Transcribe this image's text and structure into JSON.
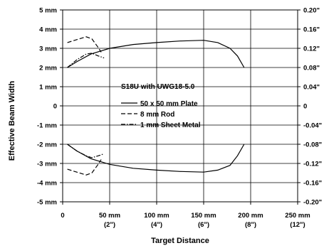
{
  "chart_data": {
    "type": "line",
    "title": "",
    "xlabel": "Target Distance",
    "ylabel": "Effective Beam Width",
    "xlim": [
      0,
      250
    ],
    "ylim": [
      -5,
      5
    ],
    "x_ticks": [
      {
        "value": 0,
        "label": "0",
        "sub": ""
      },
      {
        "value": 50,
        "label": "50 mm",
        "sub": "(2\")"
      },
      {
        "value": 100,
        "label": "100 mm",
        "sub": "(4\")"
      },
      {
        "value": 150,
        "label": "150 mm",
        "sub": "(6\")"
      },
      {
        "value": 200,
        "label": "200 mm",
        "sub": "(8\")"
      },
      {
        "value": 250,
        "label": "250 mm",
        "sub": "(12\")"
      }
    ],
    "y_ticks_left": [
      {
        "value": 5,
        "label": "5 mm"
      },
      {
        "value": 4,
        "label": "4 mm"
      },
      {
        "value": 3,
        "label": "3 mm"
      },
      {
        "value": 2,
        "label": "2 mm"
      },
      {
        "value": 1,
        "label": "1 mm"
      },
      {
        "value": 0,
        "label": "0"
      },
      {
        "value": -1,
        "label": "-1 mm"
      },
      {
        "value": -2,
        "label": "-2 mm"
      },
      {
        "value": -3,
        "label": "-3 mm"
      },
      {
        "value": -4,
        "label": "-4 mm"
      },
      {
        "value": -5,
        "label": "-5 mm"
      }
    ],
    "y_ticks_right": [
      {
        "value": 5,
        "label": "0.20\""
      },
      {
        "value": 4,
        "label": "0.16\""
      },
      {
        "value": 3,
        "label": "0.12\""
      },
      {
        "value": 2,
        "label": "0.08\""
      },
      {
        "value": 1,
        "label": "0.04\""
      },
      {
        "value": 0,
        "label": "0"
      },
      {
        "value": -1,
        "label": "-0.04\""
      },
      {
        "value": -2,
        "label": "-0.08\""
      },
      {
        "value": -3,
        "label": "-0.12\""
      },
      {
        "value": -4,
        "label": "-0.16\""
      },
      {
        "value": -5,
        "label": "-0.20\""
      }
    ],
    "legend": {
      "title": "S18U with UWG18-5.0",
      "placement": "center"
    },
    "series": [
      {
        "name": "50 x 50 mm Plate",
        "style": "solid",
        "upper": [
          [
            5,
            2.0
          ],
          [
            15,
            2.3
          ],
          [
            30,
            2.7
          ],
          [
            50,
            3.0
          ],
          [
            75,
            3.2
          ],
          [
            100,
            3.3
          ],
          [
            125,
            3.38
          ],
          [
            150,
            3.42
          ],
          [
            165,
            3.3
          ],
          [
            178,
            3.0
          ],
          [
            186,
            2.6
          ],
          [
            193,
            2.0
          ]
        ],
        "lower": [
          [
            5,
            -2.0
          ],
          [
            15,
            -2.35
          ],
          [
            30,
            -2.75
          ],
          [
            50,
            -3.05
          ],
          [
            75,
            -3.25
          ],
          [
            100,
            -3.35
          ],
          [
            125,
            -3.42
          ],
          [
            150,
            -3.45
          ],
          [
            165,
            -3.35
          ],
          [
            178,
            -3.1
          ],
          [
            186,
            -2.6
          ],
          [
            193,
            -2.0
          ]
        ]
      },
      {
        "name": "8 mm Rod",
        "style": "dashed",
        "upper": [
          [
            5,
            3.3
          ],
          [
            15,
            3.45
          ],
          [
            25,
            3.6
          ],
          [
            31,
            3.5
          ],
          [
            37,
            3.1
          ],
          [
            41,
            2.8
          ]
        ],
        "lower": [
          [
            5,
            -3.3
          ],
          [
            15,
            -3.45
          ],
          [
            25,
            -3.6
          ],
          [
            31,
            -3.5
          ],
          [
            37,
            -3.1
          ],
          [
            41,
            -2.8
          ]
        ]
      },
      {
        "name": "1 mm Sheet Metal",
        "style": "dashdot",
        "upper": [
          [
            5,
            2.0
          ],
          [
            15,
            2.4
          ],
          [
            25,
            2.7
          ],
          [
            31,
            2.75
          ],
          [
            38,
            2.6
          ],
          [
            44,
            2.5
          ]
        ],
        "lower": [
          [
            5,
            -2.0
          ],
          [
            15,
            -2.35
          ],
          [
            25,
            -2.6
          ],
          [
            31,
            -2.7
          ],
          [
            38,
            -2.6
          ],
          [
            44,
            -2.5
          ]
        ]
      }
    ],
    "grid": true
  },
  "colors": {
    "line": "#000000",
    "grid": "#000000",
    "background": "#ffffff"
  }
}
